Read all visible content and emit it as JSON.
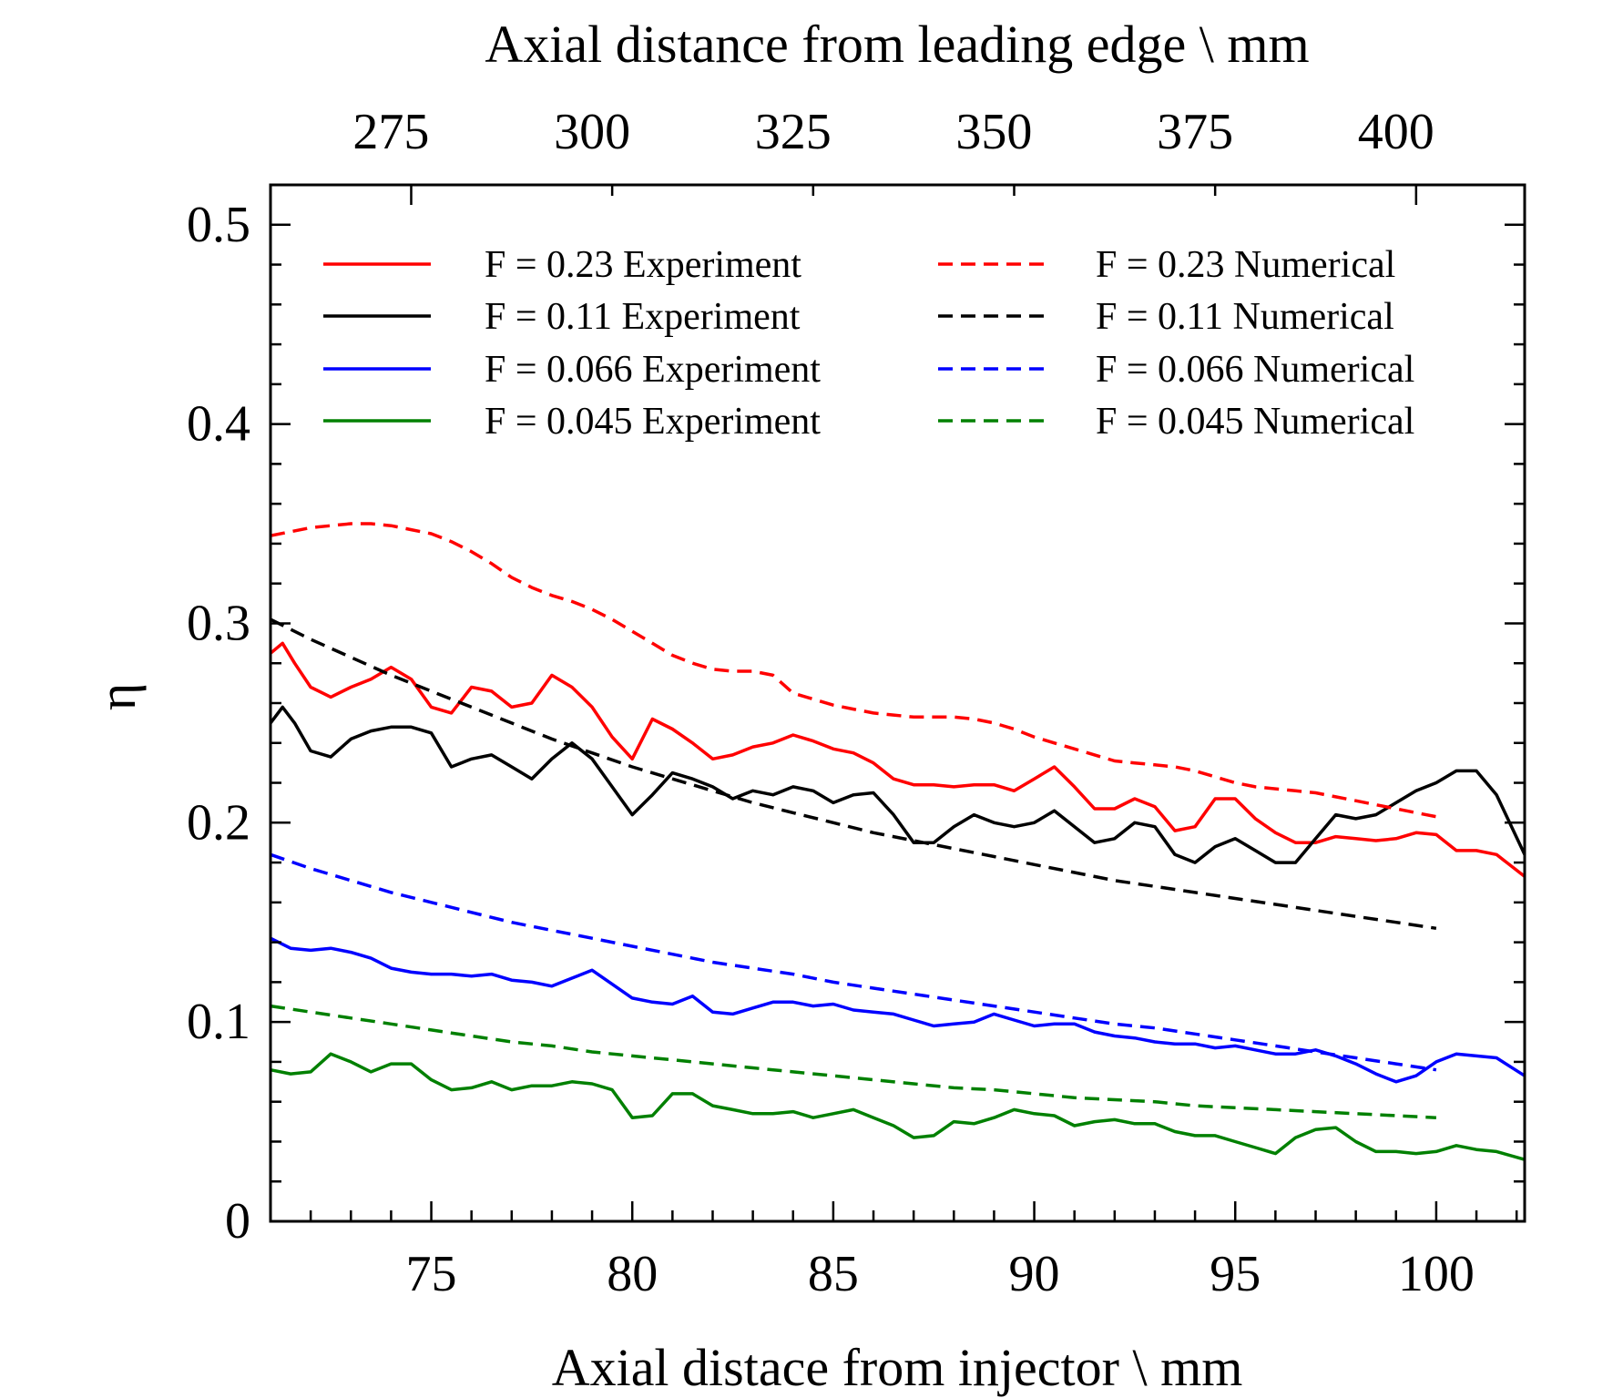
{
  "chart_data": {
    "type": "line",
    "xlabel": "Axial distace from injector \\ mm",
    "x2label": "Axial distance from leading edge \\ mm",
    "ylabel": "η",
    "xlim": [
      71,
      102.2
    ],
    "ylim": [
      0,
      0.52
    ],
    "x2_offset": 300.5,
    "xticks": [
      75,
      80,
      85,
      90,
      95,
      100
    ],
    "x2ticks": [
      275,
      300,
      325,
      350,
      375,
      400
    ],
    "yticks": [
      0,
      0.1,
      0.2,
      0.3,
      0.4,
      0.5
    ],
    "ytick_labels": [
      "0",
      "0.1",
      "0.2",
      "0.3",
      "0.4",
      "0.5"
    ],
    "legend_position": "top",
    "grid": false,
    "series": [
      {
        "name": "F = 0.23 Experiment",
        "color": "#ff0000",
        "dash": false,
        "x": [
          71,
          71.3,
          71.6,
          72,
          72.5,
          73,
          73.5,
          74,
          74.5,
          75,
          75.5,
          76,
          76.5,
          77,
          77.5,
          78,
          78.5,
          79,
          79.5,
          80,
          80.5,
          81,
          81.5,
          82,
          82.5,
          83,
          83.5,
          84,
          84.5,
          85,
          85.5,
          86,
          86.5,
          87,
          87.5,
          88,
          88.5,
          89,
          89.5,
          90,
          90.5,
          91,
          91.5,
          92,
          92.5,
          93,
          93.5,
          94,
          94.5,
          95,
          95.5,
          96,
          96.5,
          97,
          97.5,
          98,
          98.5,
          99,
          99.5,
          100,
          100.5,
          101,
          101.5,
          102.2
        ],
        "y": [
          0.285,
          0.29,
          0.28,
          0.268,
          0.263,
          0.268,
          0.272,
          0.278,
          0.272,
          0.258,
          0.255,
          0.268,
          0.266,
          0.258,
          0.26,
          0.274,
          0.268,
          0.258,
          0.243,
          0.232,
          0.252,
          0.247,
          0.24,
          0.232,
          0.234,
          0.238,
          0.24,
          0.244,
          0.241,
          0.237,
          0.235,
          0.23,
          0.222,
          0.219,
          0.219,
          0.218,
          0.219,
          0.219,
          0.216,
          0.222,
          0.228,
          0.218,
          0.207,
          0.207,
          0.212,
          0.208,
          0.196,
          0.198,
          0.212,
          0.212,
          0.202,
          0.195,
          0.19,
          0.19,
          0.193,
          0.192,
          0.191,
          0.192,
          0.195,
          0.194,
          0.186,
          0.186,
          0.184,
          0.173
        ]
      },
      {
        "name": "F = 0.11 Experiment",
        "color": "#000000",
        "dash": false,
        "x": [
          71,
          71.3,
          71.6,
          72,
          72.5,
          73,
          73.5,
          74,
          74.5,
          75,
          75.5,
          76,
          76.5,
          77,
          77.5,
          78,
          78.5,
          79,
          79.5,
          80,
          80.5,
          81,
          81.5,
          82,
          82.5,
          83,
          83.5,
          84,
          84.5,
          85,
          85.5,
          86,
          86.5,
          87,
          87.5,
          88,
          88.5,
          89,
          89.5,
          90,
          90.5,
          91,
          91.5,
          92,
          92.5,
          93,
          93.5,
          94,
          94.5,
          95,
          95.5,
          96,
          96.5,
          97,
          97.5,
          98,
          98.5,
          99,
          99.5,
          100,
          100.5,
          101,
          101.5,
          102.2
        ],
        "y": [
          0.25,
          0.258,
          0.25,
          0.236,
          0.233,
          0.242,
          0.246,
          0.248,
          0.248,
          0.245,
          0.228,
          0.232,
          0.234,
          0.228,
          0.222,
          0.232,
          0.24,
          0.232,
          0.218,
          0.204,
          0.214,
          0.225,
          0.222,
          0.218,
          0.212,
          0.216,
          0.214,
          0.218,
          0.216,
          0.21,
          0.214,
          0.215,
          0.204,
          0.19,
          0.19,
          0.198,
          0.204,
          0.2,
          0.198,
          0.2,
          0.206,
          0.198,
          0.19,
          0.192,
          0.2,
          0.198,
          0.184,
          0.18,
          0.188,
          0.192,
          0.186,
          0.18,
          0.18,
          0.192,
          0.204,
          0.202,
          0.204,
          0.21,
          0.216,
          0.22,
          0.226,
          0.226,
          0.214,
          0.184
        ]
      },
      {
        "name": "F = 0.066 Experiment",
        "color": "#0000ff",
        "dash": false,
        "x": [
          71,
          71.5,
          72,
          72.5,
          73,
          73.5,
          74,
          74.5,
          75,
          75.5,
          76,
          76.5,
          77,
          77.5,
          78,
          78.5,
          79,
          79.5,
          80,
          80.5,
          81,
          81.5,
          82,
          82.5,
          83,
          83.5,
          84,
          84.5,
          85,
          85.5,
          86,
          86.5,
          87,
          87.5,
          88,
          88.5,
          89,
          89.5,
          90,
          90.5,
          91,
          91.5,
          92,
          92.5,
          93,
          93.5,
          94,
          94.5,
          95,
          95.5,
          96,
          96.5,
          97,
          97.5,
          98,
          98.5,
          99,
          99.5,
          100,
          100.5,
          101,
          101.5,
          102.2
        ],
        "y": [
          0.142,
          0.137,
          0.136,
          0.137,
          0.135,
          0.132,
          0.127,
          0.125,
          0.124,
          0.124,
          0.123,
          0.124,
          0.121,
          0.12,
          0.118,
          0.122,
          0.126,
          0.119,
          0.112,
          0.11,
          0.109,
          0.113,
          0.105,
          0.104,
          0.107,
          0.11,
          0.11,
          0.108,
          0.109,
          0.106,
          0.105,
          0.104,
          0.101,
          0.098,
          0.099,
          0.1,
          0.104,
          0.101,
          0.098,
          0.099,
          0.099,
          0.095,
          0.093,
          0.092,
          0.09,
          0.089,
          0.089,
          0.087,
          0.088,
          0.086,
          0.084,
          0.084,
          0.086,
          0.083,
          0.079,
          0.074,
          0.07,
          0.073,
          0.08,
          0.084,
          0.083,
          0.082,
          0.073
        ]
      },
      {
        "name": "F = 0.045 Experiment",
        "color": "#008000",
        "dash": false,
        "x": [
          71,
          71.5,
          72,
          72.5,
          73,
          73.5,
          74,
          74.5,
          75,
          75.5,
          76,
          76.5,
          77,
          77.5,
          78,
          78.5,
          79,
          79.5,
          80,
          80.5,
          81,
          81.5,
          82,
          82.5,
          83,
          83.5,
          84,
          84.5,
          85,
          85.5,
          86,
          86.5,
          87,
          87.5,
          88,
          88.5,
          89,
          89.5,
          90,
          90.5,
          91,
          91.5,
          92,
          92.5,
          93,
          93.5,
          94,
          94.5,
          95,
          95.5,
          96,
          96.5,
          97,
          97.5,
          98,
          98.5,
          99,
          99.5,
          100,
          100.5,
          101,
          101.5,
          102.2
        ],
        "y": [
          0.076,
          0.074,
          0.075,
          0.084,
          0.08,
          0.075,
          0.079,
          0.079,
          0.071,
          0.066,
          0.067,
          0.07,
          0.066,
          0.068,
          0.068,
          0.07,
          0.069,
          0.066,
          0.052,
          0.053,
          0.064,
          0.064,
          0.058,
          0.056,
          0.054,
          0.054,
          0.055,
          0.052,
          0.054,
          0.056,
          0.052,
          0.048,
          0.042,
          0.043,
          0.05,
          0.049,
          0.052,
          0.056,
          0.054,
          0.053,
          0.048,
          0.05,
          0.051,
          0.049,
          0.049,
          0.045,
          0.043,
          0.043,
          0.04,
          0.037,
          0.034,
          0.042,
          0.046,
          0.047,
          0.04,
          0.035,
          0.035,
          0.034,
          0.035,
          0.038,
          0.036,
          0.035,
          0.031
        ]
      },
      {
        "name": "F = 0.23 Numerical",
        "color": "#ff0000",
        "dash": true,
        "x": [
          71,
          71.5,
          72,
          72.5,
          73,
          73.5,
          74,
          74.5,
          75,
          75.5,
          76,
          76.5,
          77,
          77.5,
          78,
          78.5,
          79,
          79.5,
          80,
          80.5,
          81,
          81.5,
          82,
          82.5,
          83,
          83.5,
          84,
          84.5,
          85,
          85.5,
          86,
          86.5,
          87,
          87.5,
          88,
          88.5,
          89,
          89.5,
          90,
          90.5,
          91,
          91.5,
          92,
          92.5,
          93,
          93.5,
          94,
          94.5,
          95,
          95.5,
          96,
          96.5,
          97,
          97.5,
          98,
          98.5,
          99,
          99.5,
          100
        ],
        "y": [
          0.344,
          0.346,
          0.348,
          0.349,
          0.35,
          0.35,
          0.349,
          0.347,
          0.345,
          0.341,
          0.336,
          0.33,
          0.323,
          0.318,
          0.314,
          0.311,
          0.307,
          0.302,
          0.296,
          0.29,
          0.284,
          0.28,
          0.277,
          0.276,
          0.276,
          0.274,
          0.265,
          0.262,
          0.259,
          0.257,
          0.255,
          0.254,
          0.253,
          0.253,
          0.253,
          0.252,
          0.25,
          0.247,
          0.243,
          0.24,
          0.237,
          0.234,
          0.231,
          0.23,
          0.229,
          0.228,
          0.226,
          0.223,
          0.22,
          0.218,
          0.217,
          0.216,
          0.215,
          0.213,
          0.211,
          0.209,
          0.207,
          0.205,
          0.203
        ]
      },
      {
        "name": "F = 0.11 Numerical",
        "color": "#000000",
        "dash": true,
        "x": [
          71,
          72,
          73,
          74,
          75,
          76,
          77,
          78,
          79,
          80,
          81,
          82,
          83,
          84,
          85,
          86,
          87,
          88,
          89,
          90,
          91,
          92,
          93,
          94,
          95,
          96,
          97,
          98,
          99,
          100
        ],
        "y": [
          0.302,
          0.292,
          0.283,
          0.274,
          0.266,
          0.258,
          0.25,
          0.242,
          0.235,
          0.228,
          0.222,
          0.216,
          0.21,
          0.205,
          0.2,
          0.195,
          0.191,
          0.187,
          0.183,
          0.179,
          0.175,
          0.171,
          0.168,
          0.165,
          0.162,
          0.159,
          0.156,
          0.153,
          0.15,
          0.147
        ]
      },
      {
        "name": "F = 0.066 Numerical",
        "color": "#0000ff",
        "dash": true,
        "x": [
          71,
          72,
          73,
          74,
          75,
          76,
          77,
          78,
          79,
          80,
          81,
          82,
          83,
          84,
          85,
          86,
          87,
          88,
          89,
          90,
          91,
          92,
          93,
          94,
          95,
          96,
          97,
          98,
          99,
          100
        ],
        "y": [
          0.184,
          0.177,
          0.171,
          0.165,
          0.16,
          0.155,
          0.15,
          0.146,
          0.142,
          0.138,
          0.134,
          0.13,
          0.127,
          0.124,
          0.12,
          0.117,
          0.114,
          0.111,
          0.108,
          0.105,
          0.102,
          0.099,
          0.097,
          0.094,
          0.091,
          0.088,
          0.085,
          0.082,
          0.079,
          0.076
        ]
      },
      {
        "name": "F = 0.045 Numerical",
        "color": "#008000",
        "dash": true,
        "x": [
          71,
          72,
          73,
          74,
          75,
          76,
          77,
          78,
          79,
          80,
          81,
          82,
          83,
          84,
          85,
          86,
          87,
          88,
          89,
          90,
          91,
          92,
          93,
          94,
          95,
          96,
          97,
          98,
          99,
          100
        ],
        "y": [
          0.108,
          0.105,
          0.102,
          0.099,
          0.096,
          0.093,
          0.09,
          0.088,
          0.085,
          0.083,
          0.081,
          0.079,
          0.077,
          0.075,
          0.073,
          0.071,
          0.069,
          0.067,
          0.066,
          0.064,
          0.062,
          0.061,
          0.06,
          0.058,
          0.057,
          0.056,
          0.055,
          0.054,
          0.053,
          0.052
        ]
      }
    ]
  }
}
